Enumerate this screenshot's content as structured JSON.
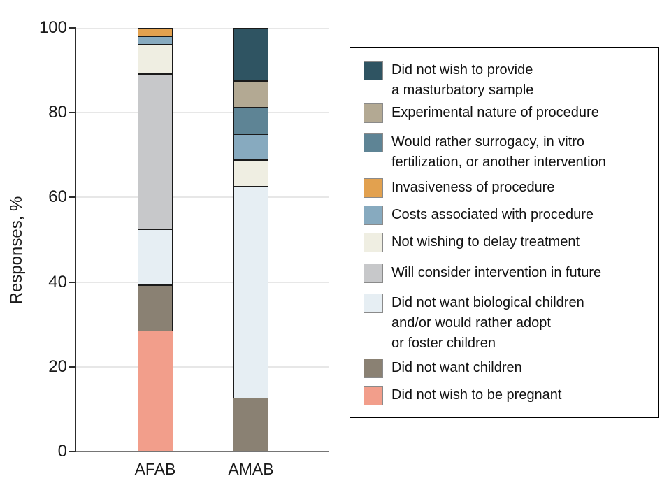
{
  "chart_data": {
    "type": "bar",
    "stacked": true,
    "title": "",
    "xlabel": "",
    "ylabel": "Responses, %",
    "ylim": [
      0,
      100
    ],
    "y_ticks": [
      0,
      20,
      40,
      60,
      80,
      100
    ],
    "grid": true,
    "legend_position": "right",
    "categories": [
      "AFAB",
      "AMAB"
    ],
    "series": [
      {
        "name": "Did not wish to provide a masturbatory sample",
        "legend_lines": [
          "Did not wish to provide",
          "a masturbatory sample"
        ],
        "color": "#2F5462",
        "values": [
          0,
          12.5
        ]
      },
      {
        "name": "Experimental nature of procedure",
        "legend_lines": [
          "Experimental nature of procedure"
        ],
        "color": "#B3A993",
        "values": [
          0,
          6.25
        ]
      },
      {
        "name": "Would rather surrogacy, in vitro fertilization, or another intervention",
        "legend_lines": [
          "Would rather surrogacy, in vitro",
          "fertilization, or another intervention"
        ],
        "color": "#5E8495",
        "values": [
          0,
          6.25
        ]
      },
      {
        "name": "Invasiveness of procedure",
        "legend_lines": [
          "Invasiveness of procedure"
        ],
        "color": "#E2A14F",
        "values": [
          2.0,
          0
        ]
      },
      {
        "name": "Costs associated with procedure",
        "legend_lines": [
          "Costs associated with procedure"
        ],
        "color": "#87AABF",
        "values": [
          2.0,
          6.25
        ]
      },
      {
        "name": "Not wishing to delay treatment",
        "legend_lines": [
          "Not wishing to delay treatment"
        ],
        "color": "#EFEEE2",
        "values": [
          6.9,
          6.25
        ]
      },
      {
        "name": "Will consider intervention in future",
        "legend_lines": [
          "Will consider intervention in future"
        ],
        "color": "#C7C8CA",
        "values": [
          36.6,
          0
        ]
      },
      {
        "name": "Did not want biological children and/or would rather adopt or foster children",
        "legend_lines": [
          "Did not want biological children",
          "and/or would rather adopt",
          "or foster children"
        ],
        "color": "#E6EEF3",
        "values": [
          13.2,
          50.0
        ]
      },
      {
        "name": "Did not want children",
        "legend_lines": [
          "Did not want children"
        ],
        "color": "#8A8173",
        "values": [
          10.9,
          12.5
        ]
      },
      {
        "name": "Did not wish to be pregnant",
        "legend_lines": [
          "Did not wish to be pregnant"
        ],
        "color": "#F29E8B",
        "values": [
          28.4,
          0
        ]
      }
    ]
  }
}
